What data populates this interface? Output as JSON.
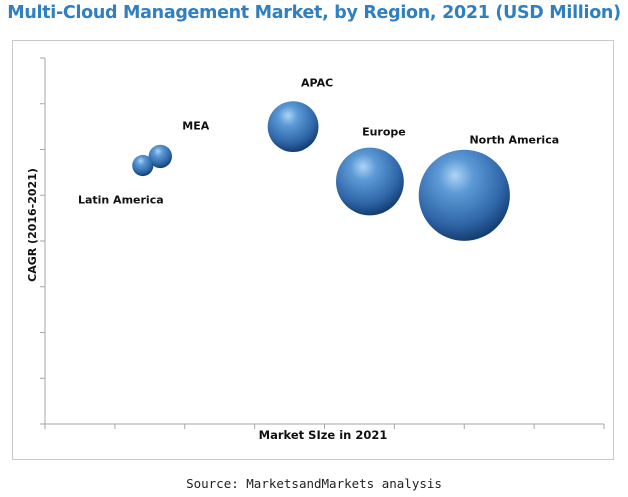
{
  "title": "Multi-Cloud Management Market, by Region, 2021 (USD Million)",
  "source": "Source: MarketsandMarkets analysis",
  "chart_data": {
    "type": "bubble",
    "title": "Multi-Cloud Management Market, by Region, 2021 (USD Million)",
    "xlabel": "Market SIze in 2021",
    "ylabel": "CAGR (2016-2021)",
    "grid": false,
    "tick_labels_shown": false,
    "bubble_color": "#3b78c0",
    "x_ticks": 8,
    "y_ticks": 8,
    "series": [
      {
        "label": "MEA",
        "x": 1.65,
        "y": 5.85,
        "size": 2.2
      },
      {
        "label": "Latin America",
        "x": 1.4,
        "y": 5.65,
        "size": 2.0
      },
      {
        "label": "APAC",
        "x": 3.55,
        "y": 6.5,
        "size": 4.8
      },
      {
        "label": "Europe",
        "x": 4.65,
        "y": 5.3,
        "size": 6.4
      },
      {
        "label": "North America",
        "x": 6.0,
        "y": 5.0,
        "size": 8.6
      }
    ],
    "xlim": [
      0,
      8
    ],
    "ylim": [
      0,
      8
    ]
  }
}
